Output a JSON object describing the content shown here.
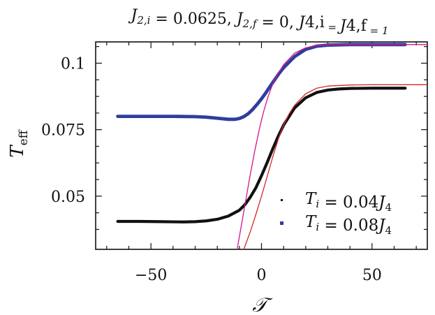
{
  "chart_data": {
    "type": "line",
    "title": "J_{2,i} = 0.0625, J_{2,f} = 0, J_{4,i} = J_{4,f} = 1",
    "title_parts": [
      "J",
      "2,i",
      " = 0.0625, ",
      "J",
      "2,f",
      " = 0, ",
      "J",
      "4,i",
      " = ",
      "J",
      "4,f",
      " = 1"
    ],
    "xlabel": "𝒯",
    "ylabel_main": "T",
    "ylabel_sub": "eff",
    "xlim": [
      -75,
      75
    ],
    "ylim": [
      0.03,
      0.108
    ],
    "xticks": [
      -50,
      0,
      50
    ],
    "xtick_labels": [
      "−50",
      "0",
      "50"
    ],
    "yticks": [
      0.05,
      0.075,
      0.1
    ],
    "ytick_labels": [
      "0.05",
      "0.075",
      "0.1"
    ],
    "grid": false,
    "legend_position": "bottom-right",
    "series": [
      {
        "name": "T_i = 0.04J_4",
        "legend_main": "T",
        "legend_sub": "i",
        "legend_rest": " = 0.04",
        "legend_j": "J",
        "legend_jsub": "4",
        "color": "#111111",
        "x": [
          -65,
          -55,
          -45,
          -35,
          -30,
          -25,
          -20,
          -15,
          -10,
          -7.5,
          -5,
          -2.5,
          0,
          2.5,
          5,
          7.5,
          10,
          15,
          20,
          25,
          30,
          35,
          40,
          50,
          60,
          65
        ],
        "y": [
          0.0405,
          0.0405,
          0.0404,
          0.0403,
          0.0404,
          0.0407,
          0.0413,
          0.0425,
          0.0447,
          0.0468,
          0.0497,
          0.0532,
          0.0577,
          0.0625,
          0.0676,
          0.0724,
          0.0767,
          0.0832,
          0.087,
          0.089,
          0.0899,
          0.0903,
          0.0905,
          0.0906,
          0.0906,
          0.0906
        ]
      },
      {
        "name": "T_i = 0.08J_4",
        "legend_main": "T",
        "legend_sub": "i",
        "legend_rest": " = 0.08",
        "legend_j": "J",
        "legend_jsub": "4",
        "color": "#2f3d9e",
        "x": [
          -65,
          -50,
          -40,
          -30,
          -25,
          -20,
          -15,
          -12,
          -10,
          -8,
          -6,
          -4,
          -2,
          0,
          2,
          4,
          6,
          8,
          10,
          15,
          20,
          25,
          30,
          40,
          50,
          65
        ],
        "y": [
          0.08,
          0.08,
          0.08,
          0.0799,
          0.0797,
          0.0793,
          0.0789,
          0.0789,
          0.0792,
          0.0799,
          0.081,
          0.0826,
          0.0845,
          0.0866,
          0.0889,
          0.0914,
          0.0938,
          0.0962,
          0.0983,
          0.1025,
          0.1052,
          0.1064,
          0.1068,
          0.107,
          0.107,
          0.107
        ]
      },
      {
        "color": "#d7262b",
        "x": [
          -8,
          -5,
          -2.5,
          0,
          2.5,
          5,
          7.5,
          10,
          12.5,
          15,
          20,
          25,
          30,
          40,
          50,
          60,
          70,
          75
        ],
        "y": [
          0.03,
          0.0368,
          0.0432,
          0.05,
          0.0572,
          0.0645,
          0.0712,
          0.0768,
          0.081,
          0.0842,
          0.0885,
          0.0906,
          0.0914,
          0.0918,
          0.0919,
          0.0919,
          0.0919,
          0.0919
        ]
      },
      {
        "color": "#d3168a",
        "x": [
          -11,
          -9,
          -7,
          -5,
          -3,
          -1,
          0,
          1,
          3,
          5,
          7,
          10,
          15,
          20,
          25,
          30,
          40,
          50,
          60,
          70,
          75
        ],
        "y": [
          0.03,
          0.0395,
          0.049,
          0.0585,
          0.0672,
          0.0751,
          0.0786,
          0.0819,
          0.0875,
          0.0919,
          0.0955,
          0.0994,
          0.1038,
          0.1058,
          0.1066,
          0.1069,
          0.107,
          0.107,
          0.107,
          0.107,
          0.107
        ]
      }
    ]
  }
}
